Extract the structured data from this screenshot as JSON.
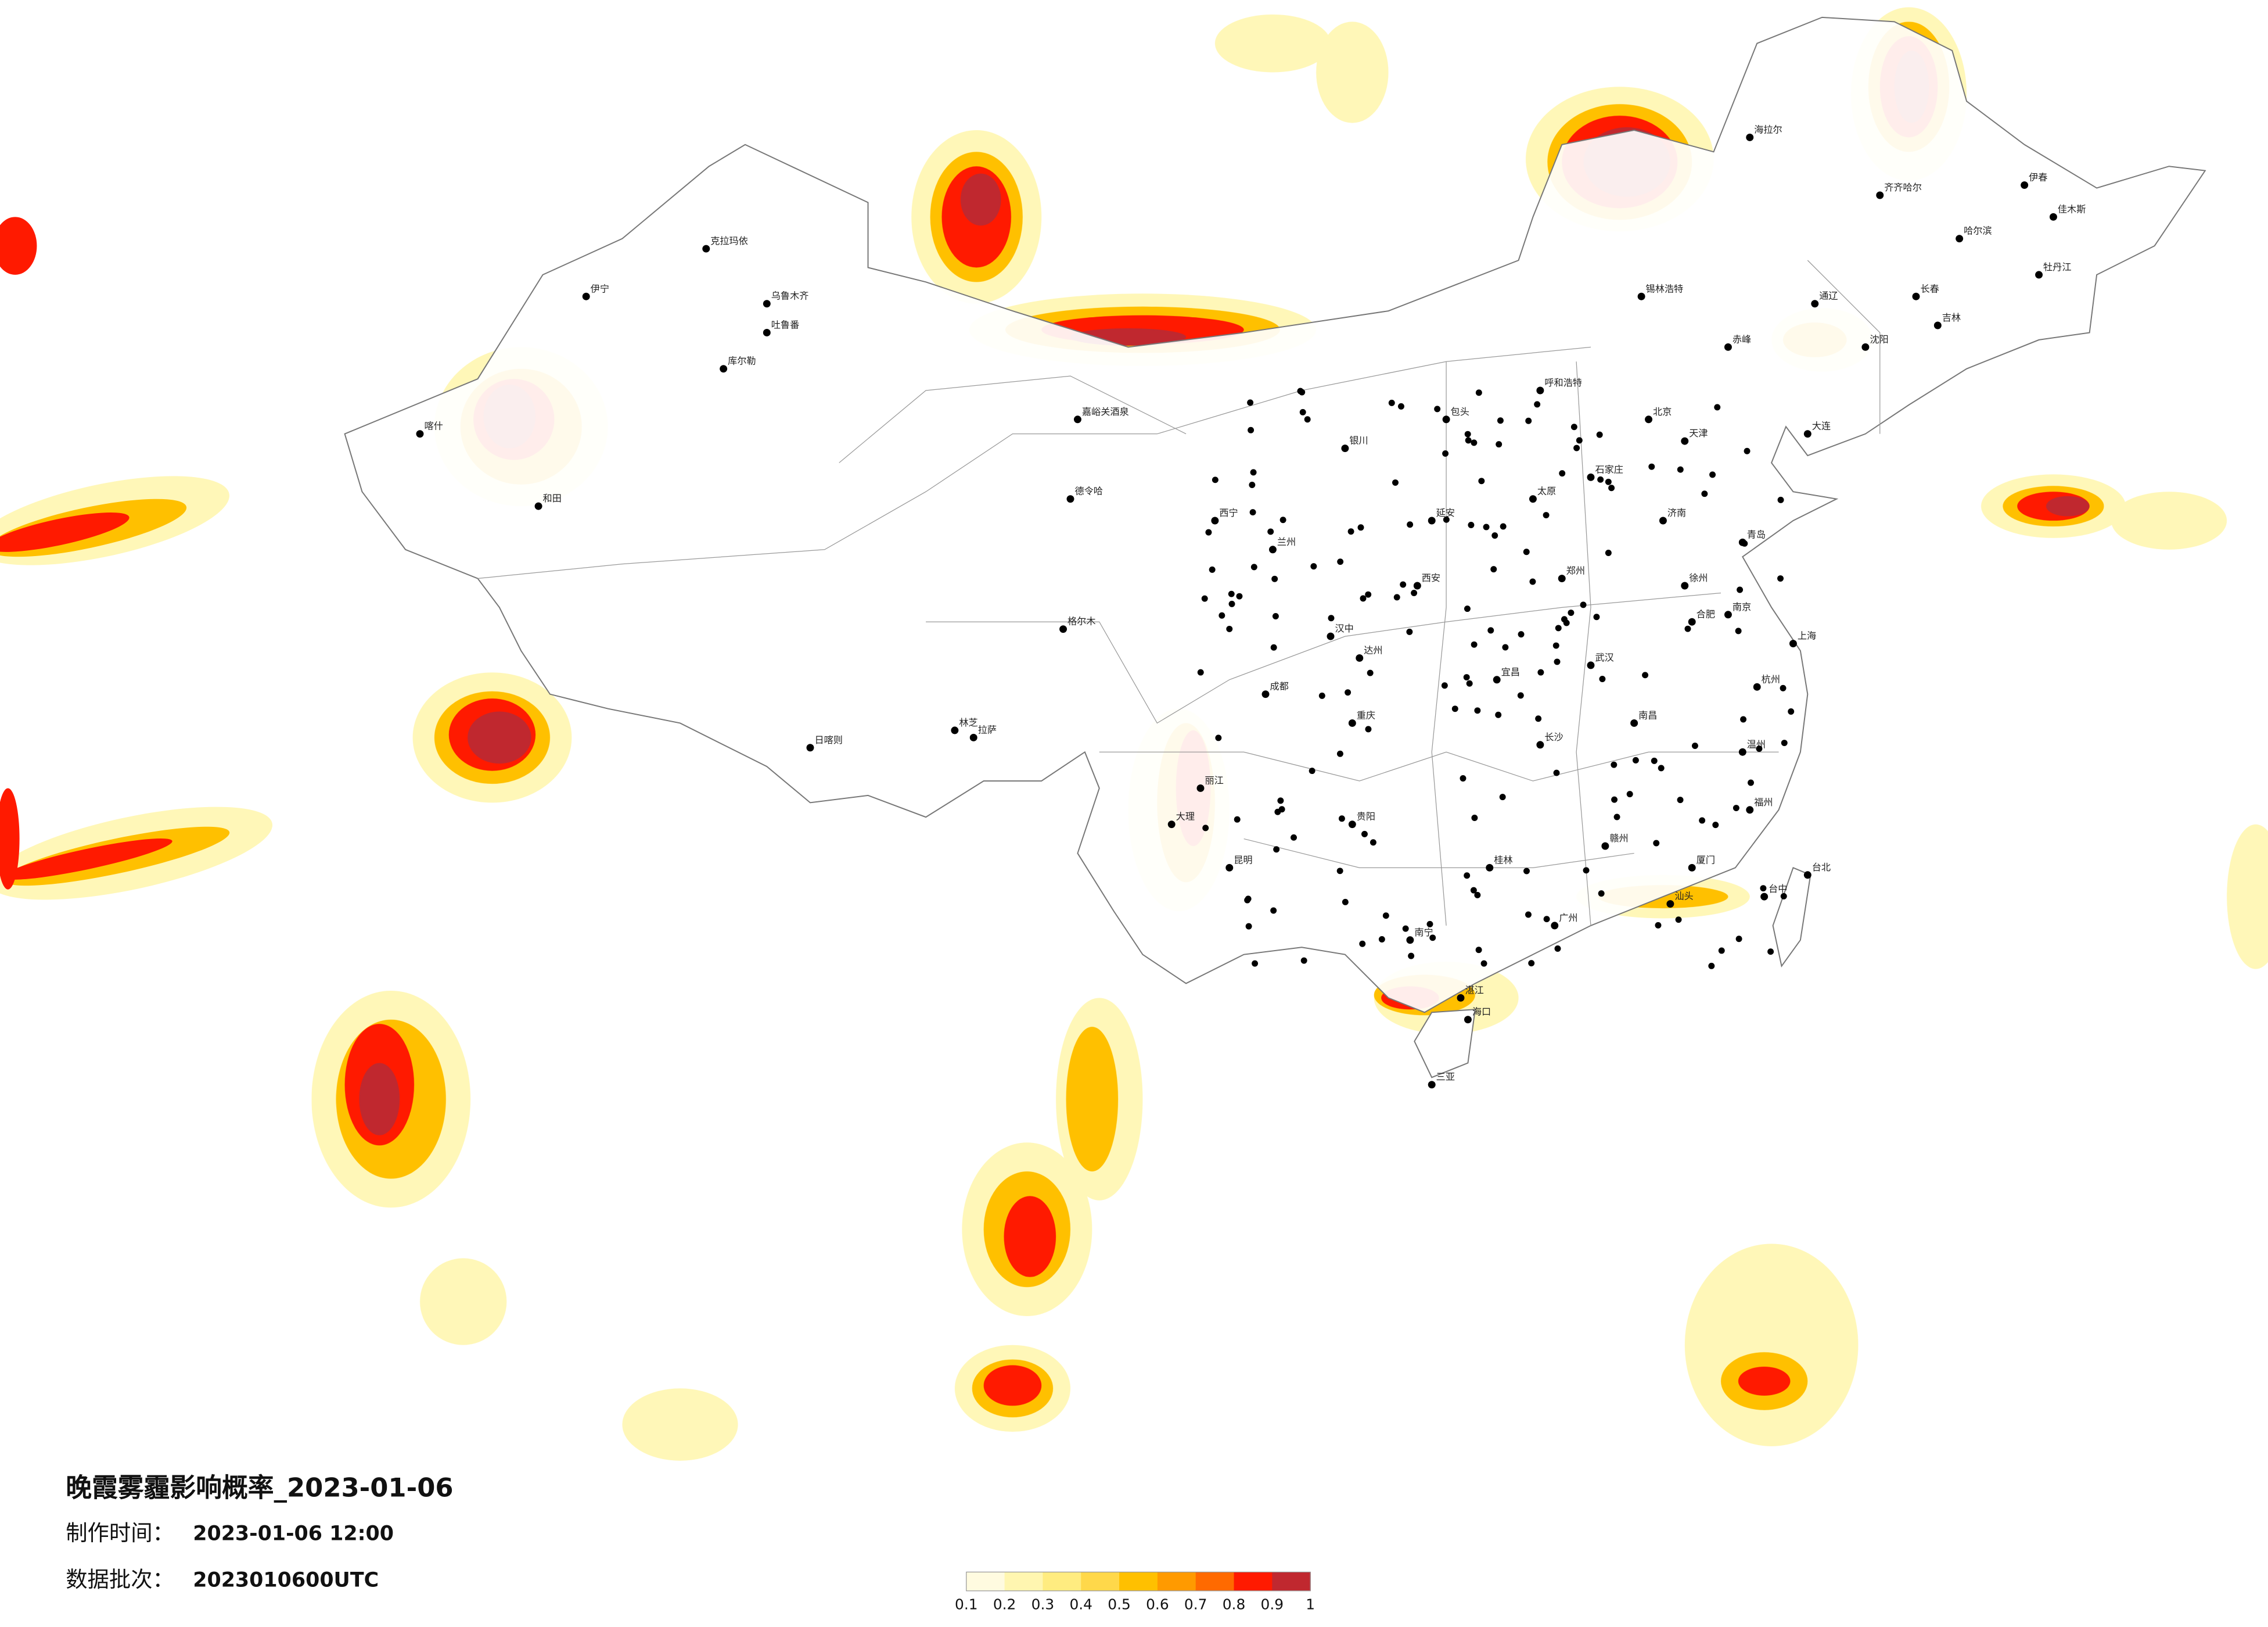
{
  "title": "晚霞雾霾影响概率_2023-01-06",
  "info": [
    {
      "label": "制作时间：",
      "value": "2023-01-06 12:00"
    },
    {
      "label": "数据批次：",
      "value": "2023010600UTC"
    }
  ],
  "colorbar": {
    "ticks": [
      0.1,
      0.2,
      0.3,
      0.4,
      0.5,
      0.6,
      0.7,
      0.8,
      0.9,
      1
    ],
    "colors": [
      "#fffbe0",
      "#fff6b0",
      "#ffec80",
      "#ffd84a",
      "#ffc000",
      "#ff9a00",
      "#ff6a00",
      "#ff1a00",
      "#c0282f"
    ]
  },
  "cities": [
    "克拉玛依",
    "乌鲁木齐",
    "伊宁",
    "喀什",
    "和田",
    "库尔勒",
    "吐鲁番",
    "嘉峪关酒泉",
    "德令哈",
    "格尔木",
    "拉萨",
    "日喀则",
    "林芝",
    "西宁",
    "兰州",
    "银川",
    "呼和浩特",
    "北京",
    "天津",
    "石家庄",
    "太原",
    "济南",
    "郑州",
    "西安",
    "成都",
    "重庆",
    "武汉",
    "长沙",
    "南昌",
    "合肥",
    "南京",
    "上海",
    "杭州",
    "福州",
    "广州",
    "南宁",
    "贵阳",
    "昆明",
    "海口",
    "台北",
    "台中",
    "哈尔滨",
    "长春",
    "沈阳",
    "大连",
    "齐齐哈尔",
    "海拉尔",
    "锡林浩特",
    "伊春",
    "佳木斯",
    "牡丹江",
    "吉林",
    "通辽",
    "赤峰",
    "包头",
    "延安",
    "汉中",
    "达州",
    "宜昌",
    "赣州",
    "厦门",
    "汕头",
    "桂林",
    "湛江",
    "三亚",
    "青岛",
    "徐州",
    "温州",
    "丽江",
    "大理"
  ]
}
